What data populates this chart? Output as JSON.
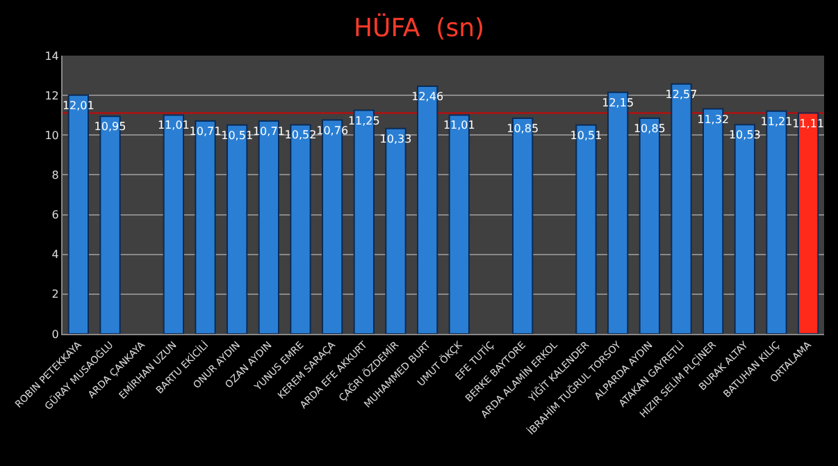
{
  "chart_data": {
    "type": "bar",
    "title": "HÜFA  (sn)",
    "categories": [
      "ROBIN PETEKKAYA",
      "GÜRAY MUSAOĞLU",
      "ARDA ÇANKAYA",
      "EMİRHAN UZUN",
      "BARTU EKİCİLİ",
      "ONUR AYDIN",
      "OZAN AYDIN",
      "YUNUS EMRE",
      "KEREM SARAÇA",
      "ARDA EFE AKKURT",
      "ÇAĞRI ÖZDEMİR",
      "MUHAMMED BURT",
      "UMUT ÖKÇK",
      "EFE TUTİÇ",
      "BERKE BAYTORE",
      "ARDA ALAMİN ERKOL",
      "YİĞİT KALENDER",
      "İBRAHİM TUĞRUL TORSOY",
      "ALPARDA AYDIN",
      "ATAKAN GAYRETLİ",
      "HIZIR SELİM PLÇİNER",
      "BURAK ALTAY",
      "BATUHAN KILIÇ",
      "ORTALAMA"
    ],
    "values": [
      12.01,
      10.95,
      null,
      11.01,
      10.71,
      10.51,
      10.71,
      10.52,
      10.76,
      11.25,
      10.33,
      12.46,
      11.01,
      null,
      10.85,
      null,
      10.51,
      12.15,
      10.85,
      12.57,
      11.32,
      10.53,
      11.21,
      11.11
    ],
    "value_labels": [
      "12,01",
      "10,95",
      null,
      "11,01",
      "10,71",
      "10,51",
      "10,71",
      "10,52",
      "10,76",
      "11,25",
      "10,33",
      "12,46",
      "11,01",
      null,
      "10,85",
      null,
      "10,51",
      "12,15",
      "10,85",
      "12,57",
      "11,32",
      "10,53",
      "11,21",
      "11,11"
    ],
    "colors": [
      "#2a7fd4",
      "#2a7fd4",
      "#2a7fd4",
      "#2a7fd4",
      "#2a7fd4",
      "#2a7fd4",
      "#2a7fd4",
      "#2a7fd4",
      "#2a7fd4",
      "#2a7fd4",
      "#2a7fd4",
      "#2a7fd4",
      "#2a7fd4",
      "#2a7fd4",
      "#2a7fd4",
      "#2a7fd4",
      "#2a7fd4",
      "#2a7fd4",
      "#2a7fd4",
      "#2a7fd4",
      "#2a7fd4",
      "#2a7fd4",
      "#2a7fd4",
      "#ff2a1a"
    ],
    "ylim": [
      0,
      14
    ],
    "yticks": [
      0,
      2,
      4,
      6,
      8,
      10,
      12,
      14
    ],
    "grid": "y",
    "legend": false,
    "ref_lines": [
      {
        "axis": "y",
        "value": 11.11,
        "label": null,
        "color": "#a01818"
      }
    ]
  }
}
